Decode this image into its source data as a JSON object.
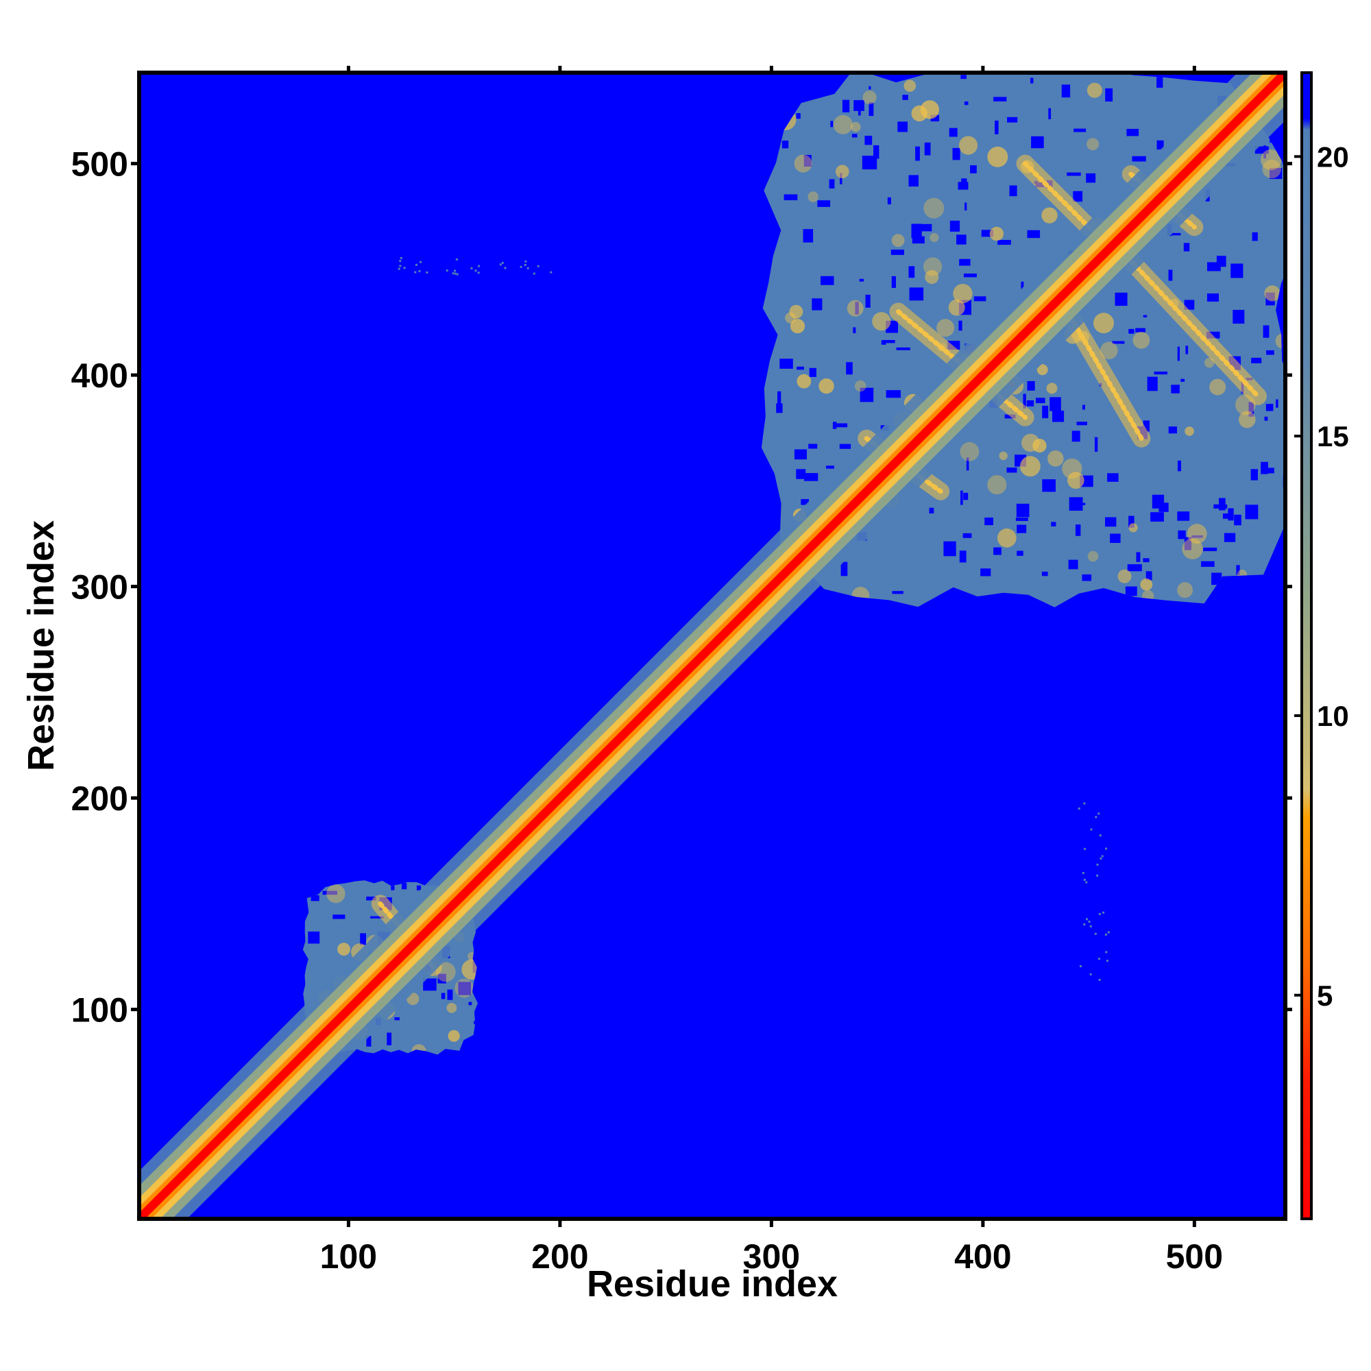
{
  "chart_data": {
    "type": "heatmap",
    "title": "",
    "xlabel": "Residue index",
    "ylabel": "Residue index",
    "xlim": [
      1,
      543
    ],
    "ylim": [
      1,
      543
    ],
    "x_ticks": [
      100,
      200,
      300,
      400,
      500
    ],
    "y_ticks": [
      100,
      200,
      300,
      400,
      500
    ],
    "x_tick_labels": [
      "100",
      "200",
      "300",
      "400",
      "500"
    ],
    "y_tick_labels": [
      "100",
      "200",
      "300",
      "400",
      "500"
    ],
    "grid": false,
    "background_value": 21,
    "colorbar": {
      "range": [
        1,
        21.5
      ],
      "ticks": [
        5,
        10,
        15,
        20
      ],
      "tick_labels": [
        "5",
        "10",
        "15",
        "20"
      ],
      "placement": "right"
    },
    "colors": {
      "low": "#ff0000",
      "mid_low": "#ff8c00",
      "mid": "#f3c247",
      "mid_high": "#8fa58a",
      "high": "#4f7fb6",
      "max": "#0000ff"
    },
    "diagonal": {
      "from": 1,
      "to": 543,
      "width_residues": 10
    },
    "domains": [
      {
        "x_range": [
          80,
          160
        ],
        "y_range": [
          80,
          160
        ],
        "level": "high"
      },
      {
        "x_range": [
          300,
          543
        ],
        "y_range": [
          295,
          543
        ],
        "level": "high"
      }
    ],
    "features": [
      {
        "type": "line",
        "from": [
          440,
          430
        ],
        "to": [
          475,
          370
        ],
        "level": "mid"
      },
      {
        "type": "line",
        "from": [
          455,
          470
        ],
        "to": [
          530,
          390
        ],
        "level": "mid"
      },
      {
        "type": "line",
        "from": [
          360,
          430
        ],
        "to": [
          420,
          380
        ],
        "level": "mid"
      },
      {
        "type": "line",
        "from": [
          470,
          495
        ],
        "to": [
          500,
          470
        ],
        "level": "mid"
      },
      {
        "type": "line",
        "from": [
          345,
          370
        ],
        "to": [
          380,
          345
        ],
        "level": "mid"
      },
      {
        "type": "line",
        "from": [
          395,
          410
        ],
        "to": [
          415,
          395
        ],
        "level": "mid_low"
      },
      {
        "type": "line",
        "from": [
          420,
          500
        ],
        "to": [
          450,
          470
        ],
        "level": "mid"
      },
      {
        "type": "line",
        "from": [
          90,
          105
        ],
        "to": [
          105,
          90
        ],
        "level": "mid_low"
      },
      {
        "type": "line",
        "from": [
          115,
          150
        ],
        "to": [
          140,
          120
        ],
        "level": "mid"
      }
    ],
    "speckles": [
      {
        "x_range": [
          445,
          460
        ],
        "y_range": [
          110,
          200
        ],
        "level": "high"
      },
      {
        "x_range": [
          115,
          200
        ],
        "y_range": [
          448,
          456
        ],
        "level": "high"
      }
    ]
  }
}
